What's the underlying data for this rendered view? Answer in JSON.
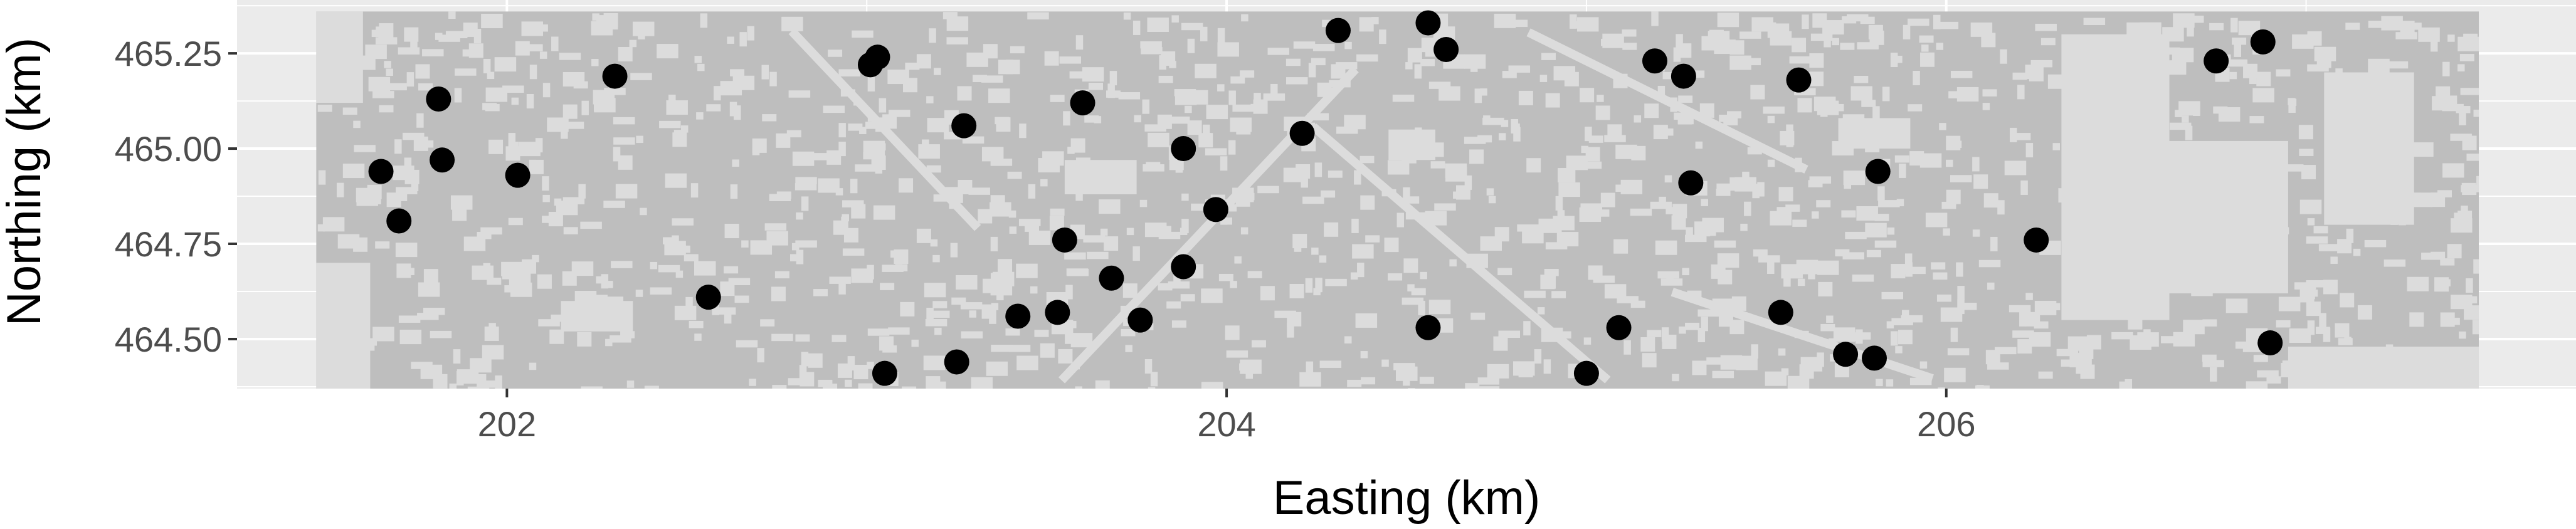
{
  "chart_data": {
    "type": "scatter",
    "xlabel": "Easting (km)",
    "ylabel": "Northing (km)",
    "xlim": [
      201.25,
      207.75
    ],
    "ylim": [
      464.37,
      465.39
    ],
    "x_ticks": [
      202,
      204,
      206
    ],
    "x_tick_labels": [
      "202",
      "204",
      "206"
    ],
    "y_ticks": [
      464.5,
      464.75,
      465.0,
      465.25
    ],
    "y_tick_labels": [
      "464.50",
      "464.75",
      "465.00",
      "465.25"
    ],
    "grid": true,
    "legend": "none",
    "colors": {
      "panel_background": "#ebebeb",
      "grid_major": "#ffffff",
      "raster_fill": "#bebebe",
      "raster_gap": "#dcdcdc",
      "points": "#000000"
    },
    "raster_extent": {
      "x": [
        201.47,
        207.48
      ],
      "y": [
        464.37,
        465.36
      ]
    },
    "points": [
      {
        "x": 201.65,
        "y": 464.94
      },
      {
        "x": 201.7,
        "y": 464.81
      },
      {
        "x": 201.81,
        "y": 465.13
      },
      {
        "x": 201.82,
        "y": 464.97
      },
      {
        "x": 202.03,
        "y": 464.93
      },
      {
        "x": 202.3,
        "y": 465.19
      },
      {
        "x": 202.56,
        "y": 464.61
      },
      {
        "x": 203.01,
        "y": 465.22
      },
      {
        "x": 203.03,
        "y": 465.24
      },
      {
        "x": 203.05,
        "y": 464.41
      },
      {
        "x": 203.25,
        "y": 464.44
      },
      {
        "x": 203.27,
        "y": 465.06
      },
      {
        "x": 203.42,
        "y": 464.56
      },
      {
        "x": 203.53,
        "y": 464.57
      },
      {
        "x": 203.55,
        "y": 464.76
      },
      {
        "x": 203.6,
        "y": 465.12
      },
      {
        "x": 203.68,
        "y": 464.66
      },
      {
        "x": 203.76,
        "y": 464.55
      },
      {
        "x": 203.88,
        "y": 464.69
      },
      {
        "x": 203.88,
        "y": 465.0
      },
      {
        "x": 203.97,
        "y": 464.84
      },
      {
        "x": 204.21,
        "y": 465.04
      },
      {
        "x": 204.31,
        "y": 465.31
      },
      {
        "x": 204.56,
        "y": 465.33
      },
      {
        "x": 204.56,
        "y": 464.53
      },
      {
        "x": 204.61,
        "y": 465.26
      },
      {
        "x": 205.0,
        "y": 464.41
      },
      {
        "x": 205.09,
        "y": 464.53
      },
      {
        "x": 205.19,
        "y": 465.23
      },
      {
        "x": 205.27,
        "y": 465.19
      },
      {
        "x": 205.29,
        "y": 464.91
      },
      {
        "x": 205.54,
        "y": 464.57
      },
      {
        "x": 205.59,
        "y": 465.18
      },
      {
        "x": 205.72,
        "y": 464.46
      },
      {
        "x": 205.8,
        "y": 464.45
      },
      {
        "x": 205.81,
        "y": 464.94
      },
      {
        "x": 206.25,
        "y": 464.76
      },
      {
        "x": 206.75,
        "y": 465.23
      },
      {
        "x": 206.88,
        "y": 465.28
      },
      {
        "x": 206.9,
        "y": 464.49
      }
    ]
  }
}
